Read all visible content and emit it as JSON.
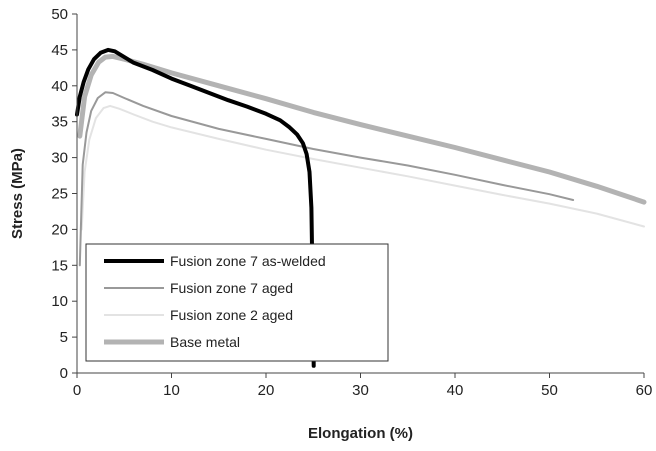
{
  "chart_data": {
    "type": "line",
    "title": "",
    "xlabel": "Elongation (%)",
    "ylabel": "Stress (MPa)",
    "xlim": [
      0,
      60
    ],
    "ylim": [
      0,
      50
    ],
    "x_ticks": [
      0,
      10,
      20,
      30,
      40,
      50,
      60
    ],
    "y_ticks": [
      0,
      5,
      10,
      15,
      20,
      25,
      30,
      35,
      40,
      45,
      50
    ],
    "grid": false,
    "legend_position": "bottom-left",
    "series": [
      {
        "name": "Fusion zone 7 as-welded",
        "color": "#000000",
        "points": [
          [
            0,
            36
          ],
          [
            0.3,
            38.5
          ],
          [
            0.7,
            40.5
          ],
          [
            1.2,
            42.3
          ],
          [
            1.8,
            43.7
          ],
          [
            2.5,
            44.6
          ],
          [
            3.3,
            45
          ],
          [
            4,
            44.8
          ],
          [
            5,
            44
          ],
          [
            6,
            43.2
          ],
          [
            8,
            42.2
          ],
          [
            10,
            41
          ],
          [
            12,
            40
          ],
          [
            14,
            39
          ],
          [
            16,
            38
          ],
          [
            18,
            37.1
          ],
          [
            20,
            36.1
          ],
          [
            21.5,
            35.2
          ],
          [
            22.5,
            34.2
          ],
          [
            23.3,
            33.2
          ],
          [
            23.9,
            32
          ],
          [
            24.3,
            30.5
          ],
          [
            24.6,
            28
          ],
          [
            24.8,
            23
          ],
          [
            24.9,
            15
          ],
          [
            25,
            8
          ],
          [
            25.05,
            1
          ]
        ]
      },
      {
        "name": "Fusion zone 7 aged",
        "color": "#999999",
        "points": [
          [
            0.3,
            15
          ],
          [
            0.6,
            29
          ],
          [
            1,
            33.5
          ],
          [
            1.5,
            36.5
          ],
          [
            2.2,
            38.3
          ],
          [
            3,
            39.1
          ],
          [
            3.8,
            39
          ],
          [
            5,
            38.3
          ],
          [
            7,
            37.2
          ],
          [
            10,
            35.8
          ],
          [
            15,
            34
          ],
          [
            20,
            32.6
          ],
          [
            25,
            31.2
          ],
          [
            30,
            30
          ],
          [
            35,
            28.9
          ],
          [
            40,
            27.6
          ],
          [
            45,
            26.2
          ],
          [
            50,
            24.9
          ],
          [
            52.5,
            24.1
          ]
        ]
      },
      {
        "name": "Fusion zone 2 aged",
        "color": "#e3e3e3",
        "points": [
          [
            0.5,
            20
          ],
          [
            0.8,
            28
          ],
          [
            1.3,
            32.5
          ],
          [
            2,
            35.5
          ],
          [
            2.8,
            36.9
          ],
          [
            3.5,
            37.2
          ],
          [
            4.5,
            36.8
          ],
          [
            6,
            36
          ],
          [
            8,
            35
          ],
          [
            10,
            34.2
          ],
          [
            15,
            32.6
          ],
          [
            20,
            31.1
          ],
          [
            25,
            29.8
          ],
          [
            30,
            28.6
          ],
          [
            35,
            27.4
          ],
          [
            40,
            26.1
          ],
          [
            45,
            24.8
          ],
          [
            50,
            23.6
          ],
          [
            55,
            22.2
          ],
          [
            60,
            20.4
          ]
        ]
      },
      {
        "name": "Base metal",
        "color": "#b3b3b3",
        "points": [
          [
            0.3,
            33
          ],
          [
            0.8,
            38.5
          ],
          [
            1.5,
            41.5
          ],
          [
            2.3,
            43.3
          ],
          [
            3,
            44
          ],
          [
            3.8,
            44.1
          ],
          [
            5,
            43.7
          ],
          [
            7,
            43
          ],
          [
            10,
            41.8
          ],
          [
            15,
            40
          ],
          [
            20,
            38.2
          ],
          [
            25,
            36.3
          ],
          [
            30,
            34.6
          ],
          [
            35,
            33
          ],
          [
            40,
            31.4
          ],
          [
            45,
            29.7
          ],
          [
            50,
            28
          ],
          [
            55,
            26
          ],
          [
            60,
            23.8
          ]
        ]
      }
    ]
  }
}
